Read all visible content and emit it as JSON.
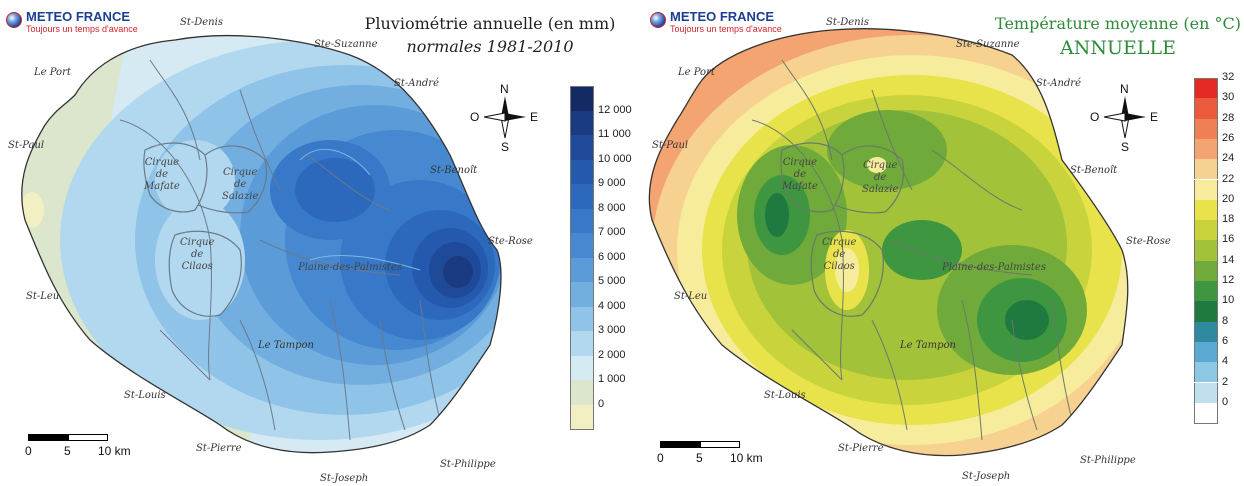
{
  "maps": [
    {
      "logo": {
        "name": "METEO FRANCE",
        "tagline": "Toujours un temps d'avance"
      },
      "title": "Pluviométrie annuelle (en mm)",
      "subtitle": "normales 1981-2010",
      "places": [
        "St-Denis",
        "Ste-Suzanne",
        "Le Port",
        "St-André",
        "St-Paul",
        "St-Benoît",
        "Ste-Rose",
        "St-Leu",
        "Le Tampon",
        "St-Louis",
        "St-Pierre",
        "St-Philippe",
        "St-Joseph"
      ],
      "areas": [
        "Cirque\nde\nMafate",
        "Cirque\nde\nSalazie",
        "Cirque\nde\nCilaos",
        "Plaine-des-Palmistes"
      ],
      "compass": {
        "n": "N",
        "s": "S",
        "e": "E",
        "w": "O"
      },
      "scale": [
        "0",
        "5",
        "10 km"
      ],
      "legend": {
        "labels": [
          "12 000",
          "11 000",
          "10 000",
          "9 000",
          "8 000",
          "7 000",
          "6 000",
          "5 000",
          "4 000",
          "3 000",
          "2 000",
          "1 000",
          "0"
        ],
        "colors": [
          "#142a64",
          "#1a3a82",
          "#1f4a99",
          "#2559ad",
          "#2c69bd",
          "#3779c8",
          "#4689d1",
          "#5a9bd8",
          "#72afe0",
          "#8fc3e8",
          "#b1d8ef",
          "#d5eaf2",
          "#dbe6cc",
          "#f2f0c2"
        ]
      }
    },
    {
      "logo": {
        "name": "METEO FRANCE",
        "tagline": "Toujours un temps d'avance"
      },
      "title": "Température moyenne (en °C)",
      "subtitle": "ANNUELLE",
      "places": [
        "St-Denis",
        "Ste-Suzanne",
        "Le Port",
        "St-André",
        "St-Paul",
        "St-Benoît",
        "Ste-Rose",
        "St-Leu",
        "Le Tampon",
        "St-Louis",
        "St-Pierre",
        "St-Philippe",
        "St-Joseph"
      ],
      "areas": [
        "Cirque\nde\nMafate",
        "Cirque\nde\nSalazie",
        "Cirque\nde\nCilaos",
        "Plaine-des-Palmistes"
      ],
      "compass": {
        "n": "N",
        "s": "S",
        "e": "E",
        "w": "O"
      },
      "scale": [
        "0",
        "5",
        "10 km"
      ],
      "legend": {
        "labels": [
          "32",
          "30",
          "28",
          "26",
          "24",
          "22",
          "20",
          "18",
          "16",
          "14",
          "12",
          "10",
          "8",
          "6",
          "4",
          "2",
          "0"
        ],
        "colors": [
          "#e32a23",
          "#ea5a3c",
          "#ef7f55",
          "#f3a470",
          "#f7d18f",
          "#f6ec9c",
          "#e8e34b",
          "#c9d43c",
          "#a2c23a",
          "#6faa3b",
          "#3f9640",
          "#1e7a3e",
          "#2f8aa0",
          "#5aa9d3",
          "#8cc7e3",
          "#c1e0ef",
          "#ffffff"
        ]
      }
    }
  ]
}
